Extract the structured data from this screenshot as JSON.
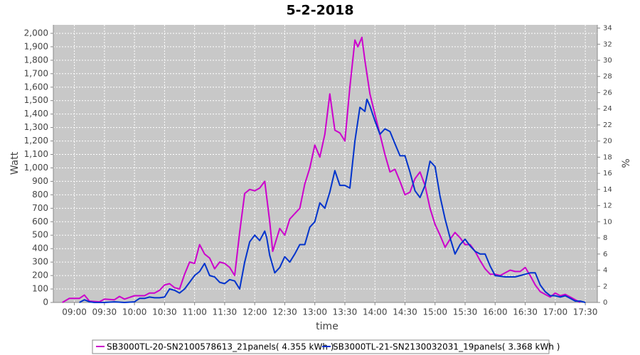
{
  "chart_data": {
    "type": "line",
    "title": "5-2-2018",
    "xlabel": "time",
    "ylabel": "Watt",
    "y2label": "%",
    "grid": true,
    "legend": "bottom",
    "xlim": [
      "08:39",
      "17:42"
    ],
    "xticks": [
      "09:00",
      "09:30",
      "10:00",
      "10:30",
      "11:00",
      "11:30",
      "12:00",
      "12:30",
      "13:00",
      "13:30",
      "14:00",
      "14:30",
      "15:00",
      "15:30",
      "16:00",
      "16:30",
      "17:00",
      "17:30"
    ],
    "ylim": [
      0,
      2063
    ],
    "yticks": [
      0,
      100,
      200,
      300,
      400,
      500,
      600,
      700,
      800,
      900,
      {
        "value": 1000,
        "label": "1,000"
      },
      {
        "value": 1100,
        "label": "1,100"
      },
      {
        "value": 1200,
        "label": "1,200"
      },
      {
        "value": 1300,
        "label": "1,300"
      },
      {
        "value": 1400,
        "label": "1,400"
      },
      {
        "value": 1500,
        "label": "1,500"
      },
      {
        "value": 1600,
        "label": "1,600"
      },
      {
        "value": 1700,
        "label": "1,700"
      },
      {
        "value": 1800,
        "label": "1,800"
      },
      {
        "value": 1900,
        "label": "1,900"
      },
      {
        "value": 2000,
        "label": "2,000"
      }
    ],
    "y2lim": [
      0,
      34.4
    ],
    "y2ticks": [
      0,
      2,
      4,
      6,
      8,
      10,
      12,
      14,
      16,
      18,
      20,
      22,
      24,
      26,
      28,
      30,
      32,
      34
    ],
    "series": [
      {
        "name": "SB3000TL-20-SN2100578613_21panels( 4.355 kWh )",
        "color": "#cc00cc",
        "x": [
          "08:48",
          "08:55",
          "09:05",
          "09:10",
          "09:15",
          "09:25",
          "09:30",
          "09:40",
          "09:45",
          "09:50",
          "10:00",
          "10:10",
          "10:15",
          "10:20",
          "10:25",
          "10:30",
          "10:35",
          "10:40",
          "10:45",
          "10:50",
          "10:55",
          "11:00",
          "11:05",
          "11:10",
          "11:15",
          "11:20",
          "11:25",
          "11:30",
          "11:35",
          "11:40",
          "11:45",
          "11:50",
          "11:55",
          "12:00",
          "12:05",
          "12:10",
          "12:15",
          "12:18",
          "12:25",
          "12:30",
          "12:35",
          "12:40",
          "12:45",
          "12:50",
          "12:55",
          "13:00",
          "13:05",
          "13:10",
          "13:15",
          "13:20",
          "13:25",
          "13:30",
          "13:35",
          "13:40",
          "13:43",
          "13:47",
          "13:50",
          "13:55",
          "14:00",
          "14:05",
          "14:10",
          "14:15",
          "14:20",
          "14:25",
          "14:30",
          "14:35",
          "14:40",
          "14:45",
          "14:50",
          "14:55",
          "15:00",
          "15:05",
          "15:10",
          "15:15",
          "15:20",
          "15:25",
          "15:30",
          "15:35",
          "15:40",
          "15:45",
          "15:50",
          "15:55",
          "16:00",
          "16:05",
          "16:10",
          "16:15",
          "16:20",
          "16:25",
          "16:30",
          "16:35",
          "16:40",
          "16:45",
          "16:50",
          "16:55",
          "17:00",
          "17:05",
          "17:10",
          "17:15",
          "17:20",
          "17:25"
        ],
        "values": [
          0,
          30,
          30,
          55,
          10,
          5,
          25,
          20,
          45,
          25,
          50,
          50,
          70,
          70,
          90,
          130,
          140,
          110,
          100,
          210,
          300,
          290,
          430,
          360,
          330,
          250,
          300,
          290,
          260,
          200,
          520,
          810,
          840,
          830,
          850,
          900,
          600,
          380,
          550,
          500,
          620,
          660,
          700,
          880,
          1000,
          1170,
          1080,
          1250,
          1550,
          1280,
          1260,
          1200,
          1600,
          1950,
          1900,
          1970,
          1800,
          1550,
          1400,
          1250,
          1100,
          970,
          990,
          900,
          800,
          820,
          920,
          970,
          870,
          700,
          580,
          500,
          410,
          470,
          520,
          480,
          430,
          430,
          380,
          310,
          250,
          210,
          210,
          200,
          220,
          240,
          230,
          230,
          260,
          200,
          130,
          80,
          60,
          40,
          70,
          50,
          60,
          40,
          20,
          0
        ]
      },
      {
        "name": "SB3000TL-21-SN2130032031_19panels( 3.368 kWh )",
        "color": "#0033cc",
        "x": [
          "09:05",
          "09:10",
          "09:15",
          "09:20",
          "09:30",
          "09:40",
          "09:50",
          "10:00",
          "10:05",
          "10:10",
          "10:15",
          "10:20",
          "10:25",
          "10:30",
          "10:35",
          "10:40",
          "10:45",
          "10:50",
          "10:55",
          "11:00",
          "11:05",
          "11:10",
          "11:15",
          "11:20",
          "11:25",
          "11:30",
          "11:35",
          "11:40",
          "11:45",
          "11:50",
          "11:55",
          "12:00",
          "12:05",
          "12:10",
          "12:12",
          "12:15",
          "12:20",
          "12:25",
          "12:30",
          "12:35",
          "12:40",
          "12:45",
          "12:50",
          "12:55",
          "13:00",
          "13:05",
          "13:10",
          "13:15",
          "13:20",
          "13:25",
          "13:30",
          "13:35",
          "13:40",
          "13:45",
          "13:50",
          "13:52",
          "13:55",
          "14:00",
          "14:05",
          "14:10",
          "14:15",
          "14:20",
          "14:25",
          "14:30",
          "14:35",
          "14:40",
          "14:45",
          "14:50",
          "14:55",
          "15:00",
          "15:05",
          "15:10",
          "15:15",
          "15:20",
          "15:25",
          "15:30",
          "15:35",
          "15:40",
          "15:45",
          "15:50",
          "15:55",
          "16:00",
          "16:10",
          "16:20",
          "16:25",
          "16:30",
          "16:35",
          "16:40",
          "16:45",
          "16:50",
          "16:55",
          "17:00",
          "17:05",
          "17:10",
          "17:15",
          "17:20",
          "17:25",
          "17:30"
        ],
        "values": [
          0,
          20,
          5,
          0,
          0,
          5,
          0,
          5,
          30,
          30,
          40,
          35,
          35,
          40,
          100,
          90,
          70,
          100,
          150,
          200,
          230,
          290,
          200,
          190,
          150,
          140,
          170,
          160,
          100,
          300,
          450,
          500,
          460,
          530,
          480,
          350,
          220,
          260,
          340,
          300,
          360,
          430,
          430,
          560,
          600,
          740,
          700,
          820,
          980,
          870,
          870,
          850,
          1200,
          1450,
          1420,
          1510,
          1460,
          1350,
          1250,
          1290,
          1270,
          1180,
          1090,
          1090,
          970,
          830,
          780,
          870,
          1050,
          1010,
          790,
          620,
          480,
          360,
          430,
          470,
          420,
          380,
          360,
          360,
          270,
          200,
          190,
          190,
          200,
          210,
          220,
          220,
          130,
          80,
          50,
          50,
          40,
          50,
          30,
          10,
          10,
          0
        ]
      }
    ]
  }
}
